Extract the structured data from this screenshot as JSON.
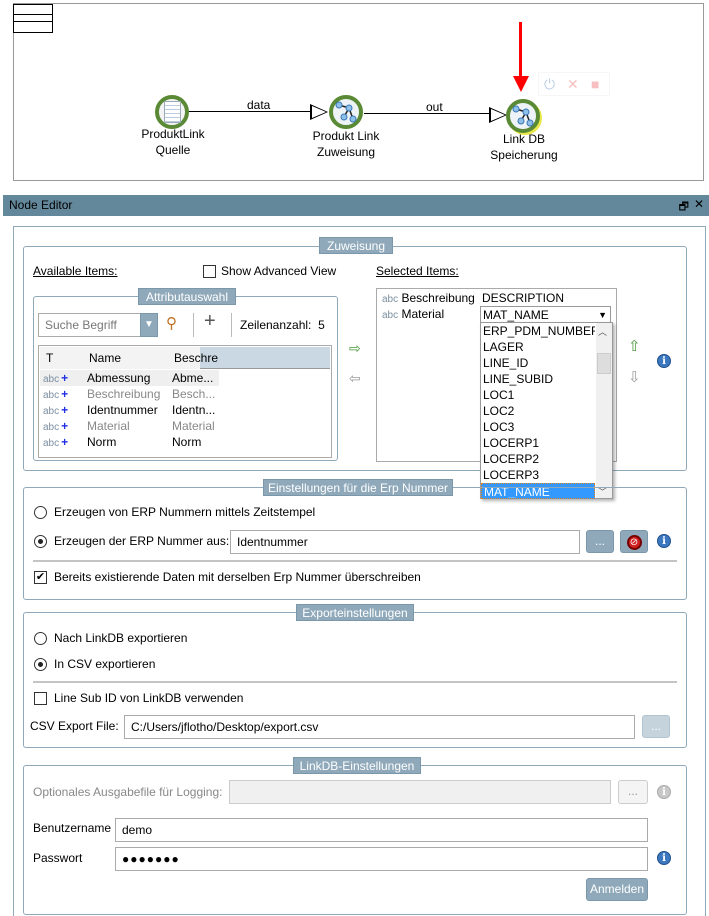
{
  "workflow": {
    "nodes": [
      {
        "label_line1": "ProduktLink",
        "label_line2": "Quelle"
      },
      {
        "label_line1": "Produkt Link",
        "label_line2": "Zuweisung"
      },
      {
        "label_line1": "Link DB",
        "label_line2": "Speicherung"
      }
    ],
    "edges": [
      {
        "label": "data"
      },
      {
        "label": "out"
      }
    ],
    "highlight_color": "#ff0000"
  },
  "node_editor": {
    "title": "Node Editor",
    "restore_icon": "🗗",
    "close_icon": "✕"
  },
  "zuweisung": {
    "legend": "Zuweisung",
    "available_label": "Available Items:",
    "show_advanced": "Show Advanced View",
    "show_advanced_checked": false,
    "selected_label": "Selected Items:",
    "attribut": {
      "legend": "Attributauswahl",
      "search_placeholder": "Suche Begriff",
      "plus": "+",
      "row_count_label": "Zeilenanzahl:",
      "row_count": "5",
      "columns": [
        "T",
        "Name",
        "Beschre"
      ],
      "rows": [
        {
          "type": "abc",
          "name": "Abmessung",
          "desc": "Abme..."
        },
        {
          "type": "abc",
          "name": "Beschreibung",
          "desc": "Besch..."
        },
        {
          "type": "abc",
          "name": "Identnummer",
          "desc": "Identn..."
        },
        {
          "type": "abc",
          "name": "Material",
          "desc": "Material"
        },
        {
          "type": "abc",
          "name": "Norm",
          "desc": "Norm"
        }
      ]
    },
    "selected": [
      {
        "type": "abc",
        "name": "Beschreibung",
        "value": "DESCRIPTION"
      },
      {
        "type": "abc",
        "name": "Material",
        "value": "MAT_NAME"
      }
    ],
    "dropdown_options": [
      "ERP_PDM_NUMBER",
      "LAGER",
      "LINE_ID",
      "LINE_SUBID",
      "LOC1",
      "LOC2",
      "LOC3",
      "LOCERP1",
      "LOCERP2",
      "LOCERP3",
      "MAT_NAME"
    ],
    "dropdown_selected": "MAT_NAME"
  },
  "erp": {
    "legend": "Einstellungen für die Erp Nummer",
    "radio1": "Erzeugen von ERP Nummern mittels Zeitstempel",
    "radio2": "Erzeugen der ERP Nummer aus:",
    "radio2_value": "Identnummer",
    "browse": "...",
    "overwrite": "Bereits existierende Daten mit derselben Erp Nummer überschreiben",
    "overwrite_checked": true
  },
  "export": {
    "legend": "Exporteinstellungen",
    "radio1": "Nach LinkDB exportieren",
    "radio2": "In CSV exportieren",
    "line_sub": "Line Sub ID von LinkDB verwenden",
    "line_sub_checked": false,
    "csv_label": "CSV Export File:",
    "csv_value": "C:/Users/jflotho/Desktop/export.csv",
    "browse": "..."
  },
  "linkdb": {
    "legend": "LinkDB-Einstellungen",
    "logfile_label": "Optionales Ausgabefile für Logging:",
    "logfile_value": "",
    "browse": "...",
    "user_label": "Benutzername",
    "user_value": "demo",
    "pass_label": "Passwort",
    "pass_value": "●●●●●●●",
    "login": "Anmelden"
  }
}
